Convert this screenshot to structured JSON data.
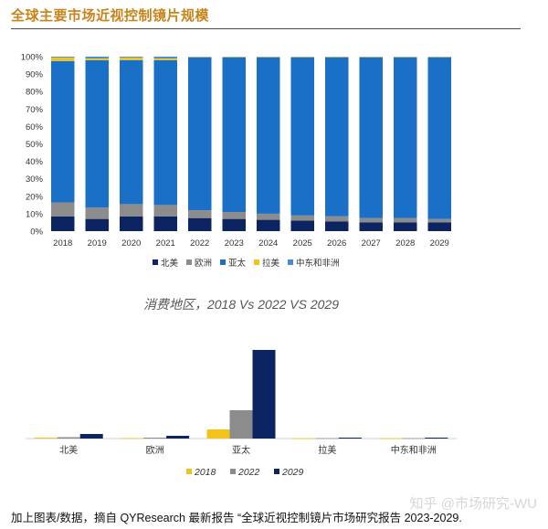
{
  "header": {
    "title": "全球主要市场近视控制镜片规模"
  },
  "footnote": "加上图表/数据，摘自 QYResearch 最新报告 “全球近视控制镜片市场研究报告 2023-2029.",
  "watermark": "知乎 @市场研究-WU",
  "chart_data": [
    {
      "type": "bar",
      "stacked": true,
      "title": "",
      "categories": [
        "2018",
        "2019",
        "2020",
        "2021",
        "2022",
        "2023",
        "2024",
        "2025",
        "2026",
        "2027",
        "2028",
        "2029"
      ],
      "ylim": [
        0,
        100
      ],
      "yticks": [
        "0%",
        "10%",
        "20%",
        "30%",
        "40%",
        "50%",
        "60%",
        "70%",
        "80%",
        "90%",
        "100%"
      ],
      "legend_position": "bottom",
      "series": [
        {
          "name": "北美",
          "color": "#0c2461",
          "values": [
            8.5,
            7,
            8.5,
            8.5,
            7.5,
            7,
            6.5,
            6,
            5.5,
            5,
            5,
            5
          ]
        },
        {
          "name": "欧洲",
          "color": "#8c8c8c",
          "values": [
            8,
            6.5,
            7,
            6.5,
            4.5,
            4,
            3.5,
            3,
            3,
            2.5,
            2.5,
            2
          ]
        },
        {
          "name": "亚太",
          "color": "#1a6fc6",
          "values": [
            81,
            84.5,
            82.5,
            83,
            87.5,
            88.5,
            89.5,
            90.5,
            91,
            92,
            92,
            92.5
          ]
        },
        {
          "name": "拉美",
          "color": "#f2c318",
          "values": [
            2,
            1,
            1.5,
            1,
            0.3,
            0.3,
            0.3,
            0.3,
            0.3,
            0.3,
            0.3,
            0.3
          ]
        },
        {
          "name": "中东和非洲",
          "color": "#4a8ad4",
          "values": [
            0.5,
            1,
            0.5,
            1,
            0.2,
            0.2,
            0.2,
            0.2,
            0.2,
            0.2,
            0.2,
            0.2
          ]
        }
      ]
    },
    {
      "type": "bar",
      "title": "消费地区，2018 Vs 2022 VS 2029",
      "categories": [
        "北美",
        "欧洲",
        "亚太",
        "拉美",
        "中东和非洲"
      ],
      "ylim": [
        0,
        100
      ],
      "legend_position": "bottom",
      "series": [
        {
          "name": "2018",
          "color": "#f2c318",
          "values": [
            1,
            0.5,
            10,
            0.3,
            0.3
          ]
        },
        {
          "name": "2022",
          "color": "#8c8c8c",
          "values": [
            1.5,
            1,
            31,
            0.5,
            0.5
          ]
        },
        {
          "name": "2029",
          "color": "#0c2461",
          "values": [
            5,
            3,
            97,
            1,
            1
          ]
        }
      ]
    }
  ]
}
